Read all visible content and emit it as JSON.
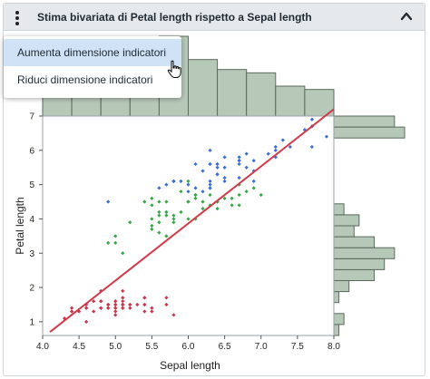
{
  "panel": {
    "title": "Stima bivariata di Petal length rispetto a Sepal length",
    "menu": {
      "items": [
        {
          "label": "Aumenta dimensione indicatori",
          "selected": true
        },
        {
          "label": "Riduci dimensione indicatori",
          "selected": false
        }
      ]
    },
    "icons": {
      "menu": "kebab-menu-icon",
      "collapse": "chevron-up-icon",
      "pointer": "hand-pointer-icon"
    }
  },
  "chart_data": {
    "type": "scatter",
    "title": "",
    "xlabel": "Sepal length",
    "ylabel": "Petal length",
    "xlim": [
      4.0,
      8.0
    ],
    "ylim": [
      0.6,
      7.0
    ],
    "x_ticks": [
      "4.0",
      "4.5",
      "5.0",
      "5.5",
      "6.0",
      "6.5",
      "7.0",
      "7.5",
      "8.0"
    ],
    "y_ticks": [
      "1",
      "2",
      "3",
      "4",
      "5",
      "6",
      "7"
    ],
    "grid": false,
    "colors": {
      "setosa": "#c8374d",
      "versicolor": "#3aa64a",
      "virginica": "#3d6fd1",
      "fit_line": "#d13a48",
      "hist_fill": "#b6c8b8",
      "hist_stroke": "#5a6a5c"
    },
    "series": [
      {
        "color_key": "setosa",
        "x": [
          4.3,
          4.4,
          4.4,
          4.4,
          4.5,
          4.6,
          4.6,
          4.6,
          4.6,
          4.7,
          4.7,
          4.8,
          4.8,
          4.8,
          4.8,
          4.8,
          4.9,
          4.9,
          4.9,
          4.9,
          5.0,
          5.0,
          5.0,
          5.0,
          5.0,
          5.0,
          5.0,
          5.0,
          5.1,
          5.1,
          5.1,
          5.1,
          5.1,
          5.1,
          5.1,
          5.1,
          5.2,
          5.2,
          5.2,
          5.3,
          5.4,
          5.4,
          5.4,
          5.4,
          5.4,
          5.5,
          5.5,
          5.7,
          5.7,
          5.8
        ],
        "y": [
          1.1,
          1.4,
          1.3,
          1.3,
          1.3,
          1.4,
          1.5,
          1.4,
          1.0,
          1.3,
          1.6,
          1.6,
          1.4,
          1.9,
          1.4,
          1.6,
          1.4,
          1.5,
          1.4,
          1.5,
          1.4,
          1.5,
          1.6,
          1.2,
          1.3,
          1.4,
          1.6,
          1.5,
          1.4,
          1.5,
          1.4,
          1.5,
          1.7,
          1.5,
          1.9,
          1.6,
          1.5,
          1.4,
          1.5,
          1.5,
          1.7,
          1.5,
          1.3,
          1.7,
          1.5,
          1.3,
          1.4,
          1.5,
          1.7,
          1.2
        ]
      },
      {
        "color_key": "versicolor",
        "x": [
          4.9,
          5.0,
          5.0,
          5.1,
          5.2,
          5.4,
          5.5,
          5.5,
          5.5,
          5.5,
          5.5,
          5.6,
          5.6,
          5.6,
          5.6,
          5.6,
          5.7,
          5.7,
          5.7,
          5.7,
          5.7,
          5.8,
          5.8,
          5.8,
          5.9,
          5.9,
          6.0,
          6.0,
          6.0,
          6.0,
          6.1,
          6.1,
          6.1,
          6.1,
          6.2,
          6.2,
          6.3,
          6.3,
          6.3,
          6.4,
          6.4,
          6.5,
          6.6,
          6.6,
          6.7,
          6.7,
          6.7,
          6.8,
          6.9,
          7.0
        ],
        "y": [
          3.3,
          3.5,
          3.3,
          3.0,
          3.9,
          4.5,
          4.0,
          4.6,
          3.7,
          4.4,
          3.8,
          4.5,
          3.9,
          4.2,
          4.1,
          3.6,
          4.5,
          3.5,
          4.2,
          4.1,
          4.2,
          4.1,
          3.9,
          4.0,
          4.8,
          4.2,
          4.5,
          4.0,
          5.1,
          4.5,
          4.7,
          4.0,
          4.7,
          4.6,
          4.3,
          4.5,
          4.7,
          4.9,
          4.4,
          4.5,
          4.3,
          4.6,
          4.4,
          4.6,
          4.7,
          4.4,
          5.0,
          4.8,
          4.9,
          4.7
        ]
      },
      {
        "color_key": "virginica",
        "x": [
          4.9,
          5.6,
          5.7,
          5.8,
          5.8,
          5.8,
          5.9,
          6.0,
          6.0,
          6.1,
          6.1,
          6.2,
          6.2,
          6.3,
          6.3,
          6.3,
          6.3,
          6.3,
          6.3,
          6.4,
          6.4,
          6.4,
          6.4,
          6.4,
          6.5,
          6.5,
          6.5,
          6.5,
          6.7,
          6.7,
          6.7,
          6.7,
          6.7,
          6.8,
          6.8,
          6.9,
          6.9,
          6.9,
          7.1,
          7.2,
          7.2,
          7.2,
          7.3,
          7.4,
          7.6,
          7.7,
          7.7,
          7.7,
          7.7,
          7.9
        ],
        "y": [
          4.5,
          4.9,
          5.0,
          5.1,
          5.1,
          5.1,
          5.1,
          5.0,
          4.8,
          5.6,
          4.9,
          4.8,
          5.4,
          6.0,
          5.1,
          5.6,
          4.9,
          5.0,
          5.6,
          5.6,
          5.3,
          5.5,
          5.3,
          5.6,
          5.8,
          5.1,
          5.5,
          5.2,
          5.8,
          5.7,
          5.6,
          5.2,
          5.7,
          5.9,
          5.5,
          5.7,
          5.1,
          5.4,
          5.9,
          6.1,
          6.0,
          5.8,
          6.3,
          6.1,
          6.6,
          6.7,
          6.9,
          6.1,
          6.7,
          6.4
        ]
      }
    ],
    "fit_line": {
      "x": [
        4.1,
        8.0
      ],
      "y": [
        0.7,
        7.2
      ]
    },
    "x_hist_counts": [
      9,
      9,
      12,
      18,
      24,
      17,
      14,
      13,
      9,
      8
    ],
    "y_hist_counts": [
      1,
      2,
      0,
      1,
      3,
      8,
      10,
      12,
      8,
      4,
      5,
      2,
      0,
      0,
      0,
      0,
      0,
      0,
      14,
      12
    ]
  }
}
